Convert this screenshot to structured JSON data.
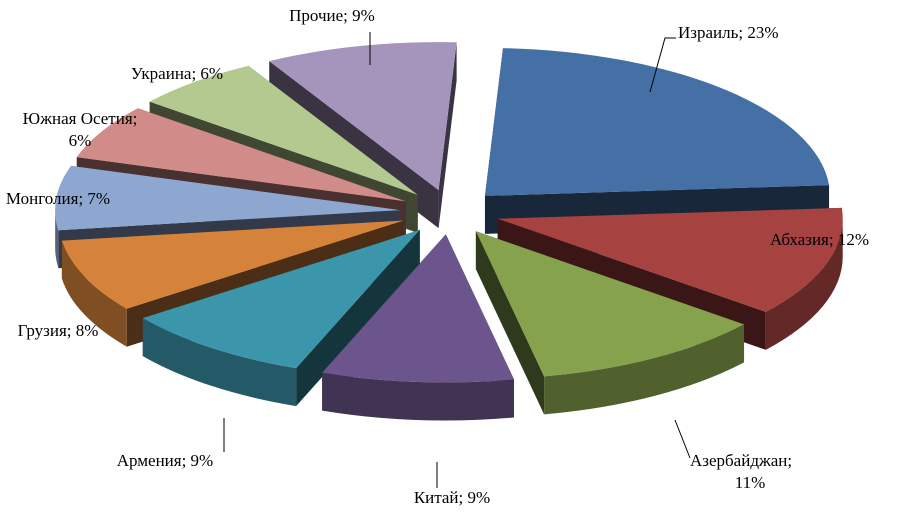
{
  "chart_data": {
    "type": "pie",
    "title": "",
    "three_d": true,
    "exploded": true,
    "legend": "none",
    "slices": [
      {
        "label": "Израиль",
        "value": 23,
        "text": "Израиль; 23%",
        "color": "#4470a6"
      },
      {
        "label": "Абхазия",
        "value": 12,
        "text": "Абхазия; 12%",
        "color": "#a6423f"
      },
      {
        "label": "Азербайджан",
        "value": 11,
        "text": "Азербайджан;",
        "text2": "11%",
        "color": "#86a24d"
      },
      {
        "label": "Китай",
        "value": 9,
        "text": "Китай; 9%",
        "color": "#6c558c"
      },
      {
        "label": "Армения",
        "value": 9,
        "text": "Армения; 9%",
        "color": "#3c96ab"
      },
      {
        "label": "Грузия",
        "value": 8,
        "text": "Грузия; 8%",
        "color": "#d5823b"
      },
      {
        "label": "Монголия",
        "value": 7,
        "text": "Монголия; 7%",
        "color": "#8ea7d0"
      },
      {
        "label": "Южная Осетия",
        "value": 6,
        "text": "Южная Осетия;",
        "text2": "6%",
        "color": "#d18b88"
      },
      {
        "label": "Украина",
        "value": 6,
        "text": "Украина; 6%",
        "color": "#b4c98f"
      },
      {
        "label": "Прочие",
        "value": 9,
        "text": "Прочие; 9%",
        "color": "#a595bd"
      }
    ]
  }
}
